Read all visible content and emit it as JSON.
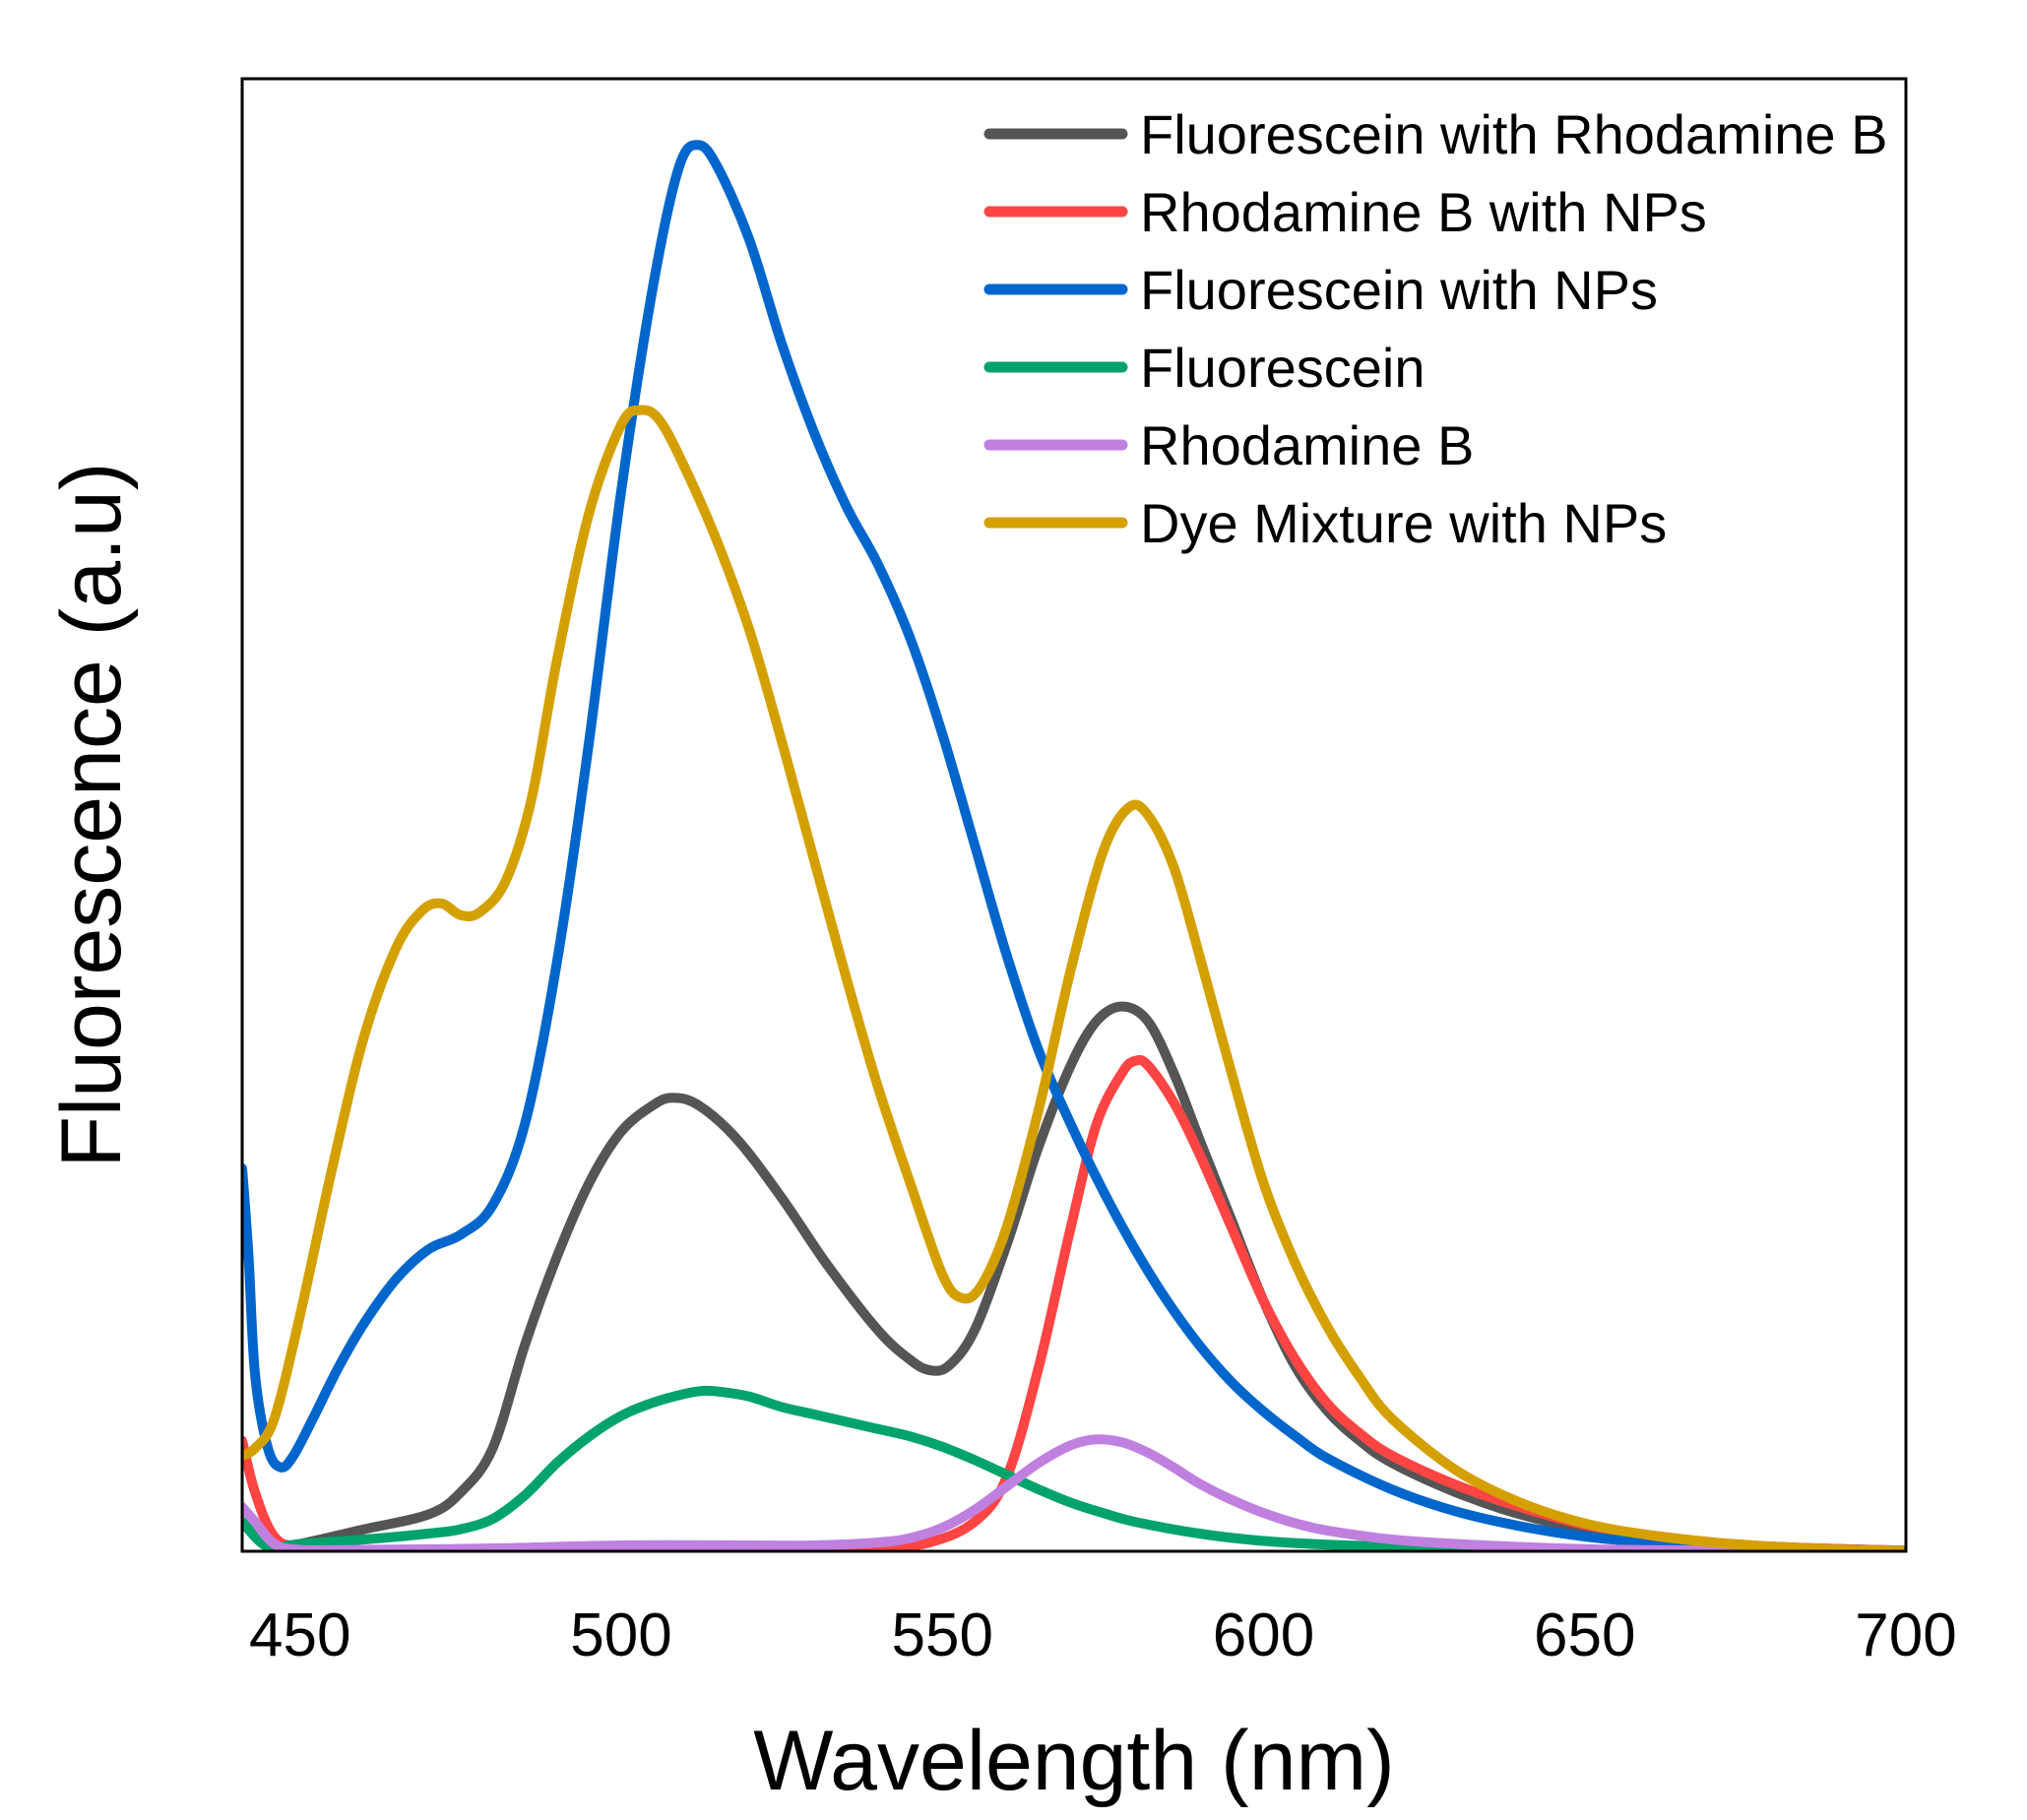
{
  "chart_data": {
    "type": "line",
    "title": "",
    "xlabel": "Wavelength (nm)",
    "ylabel": "Fluorescence (a.u)",
    "xlim": [
      441,
      700
    ],
    "ylim": [
      0,
      100
    ],
    "x_ticks": [
      "450",
      "500",
      "550",
      "600",
      "650",
      "700"
    ],
    "x_tick_values": [
      450,
      500,
      550,
      600,
      650,
      700
    ],
    "y_ticks_shown": false,
    "grid": false,
    "legend_position": "top-right",
    "series": [
      {
        "name": "Fluorescein with Rhodamine B",
        "color": "#555555",
        "points": [
          [
            441,
            2
          ],
          [
            445,
            0.3
          ],
          [
            450,
            0.5
          ],
          [
            460,
            1.5
          ],
          [
            470,
            2.5
          ],
          [
            475,
            4
          ],
          [
            480,
            7
          ],
          [
            485,
            14
          ],
          [
            490,
            20
          ],
          [
            495,
            25
          ],
          [
            500,
            28.5
          ],
          [
            505,
            30.3
          ],
          [
            508,
            30.8
          ],
          [
            512,
            30.3
          ],
          [
            518,
            28
          ],
          [
            525,
            24
          ],
          [
            532,
            19.5
          ],
          [
            540,
            15
          ],
          [
            545,
            13
          ],
          [
            548,
            12.3
          ],
          [
            551,
            12.6
          ],
          [
            555,
            15
          ],
          [
            560,
            20.8
          ],
          [
            565,
            27.5
          ],
          [
            570,
            33
          ],
          [
            574,
            36
          ],
          [
            578,
            37
          ],
          [
            582,
            36
          ],
          [
            586,
            32.5
          ],
          [
            590,
            28
          ],
          [
            595,
            22.5
          ],
          [
            600,
            17
          ],
          [
            605,
            12.5
          ],
          [
            610,
            9.5
          ],
          [
            615,
            7.5
          ],
          [
            620,
            6
          ],
          [
            630,
            4
          ],
          [
            640,
            2.5
          ],
          [
            650,
            1.5
          ],
          [
            660,
            0.9
          ],
          [
            670,
            0.5
          ],
          [
            680,
            0.3
          ],
          [
            690,
            0.15
          ],
          [
            700,
            0.05
          ]
        ]
      },
      {
        "name": "Rhodamine B with NPs",
        "color": "#ff4444",
        "points": [
          [
            441,
            7.5
          ],
          [
            443,
            4
          ],
          [
            446,
            1
          ],
          [
            450,
            0.3
          ],
          [
            460,
            0.1
          ],
          [
            480,
            0.1
          ],
          [
            500,
            0.1
          ],
          [
            520,
            0.1
          ],
          [
            530,
            0.1
          ],
          [
            540,
            0.2
          ],
          [
            548,
            0.6
          ],
          [
            555,
            2
          ],
          [
            560,
            5
          ],
          [
            565,
            12.5
          ],
          [
            570,
            22
          ],
          [
            574,
            29
          ],
          [
            578,
            32.5
          ],
          [
            580,
            33.3
          ],
          [
            582,
            33
          ],
          [
            586,
            30.5
          ],
          [
            590,
            27
          ],
          [
            595,
            22
          ],
          [
            600,
            17
          ],
          [
            605,
            13
          ],
          [
            610,
            10
          ],
          [
            615,
            8
          ],
          [
            620,
            6.5
          ],
          [
            630,
            4.5
          ],
          [
            640,
            3
          ],
          [
            650,
            1.8
          ],
          [
            660,
            1.1
          ],
          [
            670,
            0.6
          ],
          [
            680,
            0.3
          ],
          [
            690,
            0.15
          ],
          [
            700,
            0.05
          ]
        ]
      },
      {
        "name": "Fluorescein with NPs",
        "color": "#0066cc",
        "points": [
          [
            441,
            26
          ],
          [
            442,
            20
          ],
          [
            443,
            12
          ],
          [
            445,
            7
          ],
          [
            447,
            5.7
          ],
          [
            449,
            6.5
          ],
          [
            452,
            9
          ],
          [
            456,
            12.5
          ],
          [
            460,
            15.5
          ],
          [
            465,
            18.5
          ],
          [
            470,
            20.5
          ],
          [
            475,
            21.5
          ],
          [
            480,
            23.5
          ],
          [
            485,
            29
          ],
          [
            490,
            40
          ],
          [
            495,
            55
          ],
          [
            500,
            72
          ],
          [
            505,
            86
          ],
          [
            509,
            94
          ],
          [
            512,
            95.5
          ],
          [
            515,
            94
          ],
          [
            520,
            89
          ],
          [
            525,
            82
          ],
          [
            530,
            76
          ],
          [
            535,
            71
          ],
          [
            540,
            67
          ],
          [
            545,
            62
          ],
          [
            550,
            55.5
          ],
          [
            555,
            48
          ],
          [
            560,
            40.5
          ],
          [
            565,
            34
          ],
          [
            570,
            29
          ],
          [
            575,
            24.5
          ],
          [
            580,
            20.5
          ],
          [
            585,
            17
          ],
          [
            590,
            14
          ],
          [
            595,
            11.5
          ],
          [
            600,
            9.5
          ],
          [
            605,
            7.8
          ],
          [
            610,
            6.3
          ],
          [
            620,
            4.2
          ],
          [
            630,
            2.7
          ],
          [
            640,
            1.7
          ],
          [
            650,
            1
          ],
          [
            660,
            0.6
          ],
          [
            670,
            0.35
          ],
          [
            680,
            0.2
          ],
          [
            690,
            0.1
          ],
          [
            700,
            0.05
          ]
        ]
      },
      {
        "name": "Fluorescein",
        "color": "#00a36c",
        "points": [
          [
            441,
            2
          ],
          [
            445,
            0.3
          ],
          [
            450,
            0.5
          ],
          [
            460,
            0.8
          ],
          [
            470,
            1.2
          ],
          [
            475,
            1.5
          ],
          [
            480,
            2.2
          ],
          [
            485,
            3.8
          ],
          [
            490,
            6
          ],
          [
            495,
            7.8
          ],
          [
            500,
            9.2
          ],
          [
            505,
            10.1
          ],
          [
            510,
            10.7
          ],
          [
            513,
            10.9
          ],
          [
            516,
            10.8
          ],
          [
            520,
            10.5
          ],
          [
            525,
            9.8
          ],
          [
            530,
            9.3
          ],
          [
            535,
            8.8
          ],
          [
            540,
            8.3
          ],
          [
            545,
            7.8
          ],
          [
            550,
            7.1
          ],
          [
            555,
            6.2
          ],
          [
            560,
            5.2
          ],
          [
            565,
            4.2
          ],
          [
            570,
            3.3
          ],
          [
            575,
            2.6
          ],
          [
            580,
            2
          ],
          [
            590,
            1.2
          ],
          [
            600,
            0.7
          ],
          [
            610,
            0.45
          ],
          [
            620,
            0.3
          ],
          [
            630,
            0.18
          ],
          [
            640,
            0.1
          ],
          [
            660,
            0.05
          ],
          [
            700,
            0.02
          ]
        ]
      },
      {
        "name": "Rhodamine B",
        "color": "#c080e0",
        "points": [
          [
            441,
            3
          ],
          [
            443,
            2
          ],
          [
            446,
            0.5
          ],
          [
            450,
            0.1
          ],
          [
            460,
            0.1
          ],
          [
            480,
            0.2
          ],
          [
            500,
            0.4
          ],
          [
            520,
            0.4
          ],
          [
            530,
            0.4
          ],
          [
            540,
            0.6
          ],
          [
            545,
            0.9
          ],
          [
            550,
            1.6
          ],
          [
            555,
            2.8
          ],
          [
            560,
            4.4
          ],
          [
            565,
            6
          ],
          [
            570,
            7.2
          ],
          [
            574,
            7.6
          ],
          [
            578,
            7.4
          ],
          [
            582,
            6.7
          ],
          [
            586,
            5.7
          ],
          [
            590,
            4.6
          ],
          [
            595,
            3.5
          ],
          [
            600,
            2.6
          ],
          [
            605,
            1.9
          ],
          [
            610,
            1.4
          ],
          [
            620,
            0.8
          ],
          [
            630,
            0.5
          ],
          [
            640,
            0.3
          ],
          [
            650,
            0.15
          ],
          [
            660,
            0.08
          ],
          [
            680,
            0.03
          ],
          [
            700,
            0.01
          ]
        ]
      },
      {
        "name": "Dye Mixture with NPs",
        "color": "#d4a000",
        "points": [
          [
            441,
            6.5
          ],
          [
            443,
            7
          ],
          [
            446,
            9
          ],
          [
            450,
            16
          ],
          [
            455,
            26
          ],
          [
            460,
            35
          ],
          [
            465,
            41
          ],
          [
            469,
            43.5
          ],
          [
            472,
            44
          ],
          [
            475,
            43.2
          ],
          [
            478,
            43.4
          ],
          [
            482,
            45.5
          ],
          [
            486,
            51
          ],
          [
            490,
            60.5
          ],
          [
            495,
            70.5
          ],
          [
            500,
            76.5
          ],
          [
            503,
            77.5
          ],
          [
            506,
            76.8
          ],
          [
            510,
            73.5
          ],
          [
            515,
            68.5
          ],
          [
            520,
            62.5
          ],
          [
            525,
            55
          ],
          [
            530,
            47
          ],
          [
            535,
            39
          ],
          [
            540,
            31.5
          ],
          [
            545,
            25
          ],
          [
            550,
            18.8
          ],
          [
            553,
            17.2
          ],
          [
            556,
            18
          ],
          [
            560,
            22
          ],
          [
            565,
            30
          ],
          [
            570,
            39.5
          ],
          [
            575,
            47.5
          ],
          [
            579,
            50.5
          ],
          [
            582,
            50
          ],
          [
            586,
            46.5
          ],
          [
            590,
            40.5
          ],
          [
            595,
            32.5
          ],
          [
            600,
            25
          ],
          [
            605,
            19.5
          ],
          [
            610,
            15.2
          ],
          [
            615,
            11.8
          ],
          [
            620,
            9
          ],
          [
            630,
            5.5
          ],
          [
            640,
            3.3
          ],
          [
            650,
            1.9
          ],
          [
            660,
            1.1
          ],
          [
            670,
            0.6
          ],
          [
            680,
            0.3
          ],
          [
            690,
            0.12
          ],
          [
            700,
            0.05
          ]
        ]
      }
    ]
  }
}
